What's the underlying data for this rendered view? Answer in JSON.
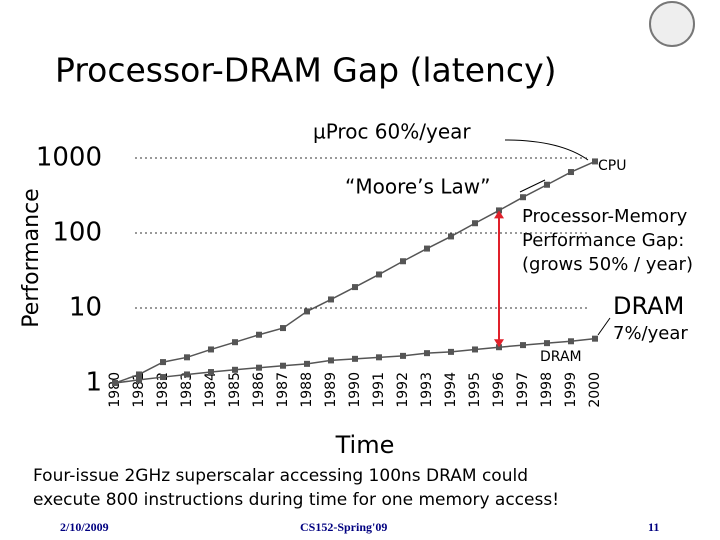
{
  "chart_data": {
    "type": "line",
    "title": "Processor-DRAM Gap (latency)",
    "ylabel": "Performance",
    "xlabel": "Time",
    "categories": [
      "1980",
      "1981",
      "1982",
      "1983",
      "1984",
      "1985",
      "1986",
      "1987",
      "1988",
      "1989",
      "1990",
      "1991",
      "1992",
      "1993",
      "1994",
      "1995",
      "1996",
      "1997",
      "1998",
      "1999",
      "2000"
    ],
    "series": [
      {
        "name": "CPU",
        "color": "#555555",
        "values": [
          1,
          1.3,
          1.9,
          2.2,
          2.8,
          3.5,
          4.4,
          5.4,
          9,
          13,
          19,
          28,
          42,
          62,
          90,
          135,
          200,
          300,
          440,
          650,
          900
        ]
      },
      {
        "name": "DRAM",
        "color": "#555555",
        "values": [
          1,
          1.1,
          1.2,
          1.3,
          1.4,
          1.5,
          1.6,
          1.7,
          1.8,
          2,
          2.1,
          2.2,
          2.3,
          2.5,
          2.6,
          2.8,
          3,
          3.2,
          3.4,
          3.6,
          3.9
        ]
      }
    ],
    "log_scale": true,
    "ylim": [
      1,
      1000
    ],
    "yticks": [
      1,
      10,
      100,
      1000
    ],
    "grid": true,
    "annotations": {
      "cpu_rate": "µProc 60%/year",
      "moore": "“Moore’s Law”",
      "gap": [
        "Processor-Memory",
        "Performance Gap:",
        "(grows 50% / year)"
      ],
      "dram_big": "DRAM",
      "dram_rate": "7%/year"
    }
  },
  "caption": [
    "Four-issue 2GHz superscalar accessing 100ns DRAM could",
    "execute 800 instructions during time for one memory access!"
  ],
  "footer": {
    "date": "2/10/2009",
    "course": "CS152-Spring'09",
    "page": "11"
  }
}
